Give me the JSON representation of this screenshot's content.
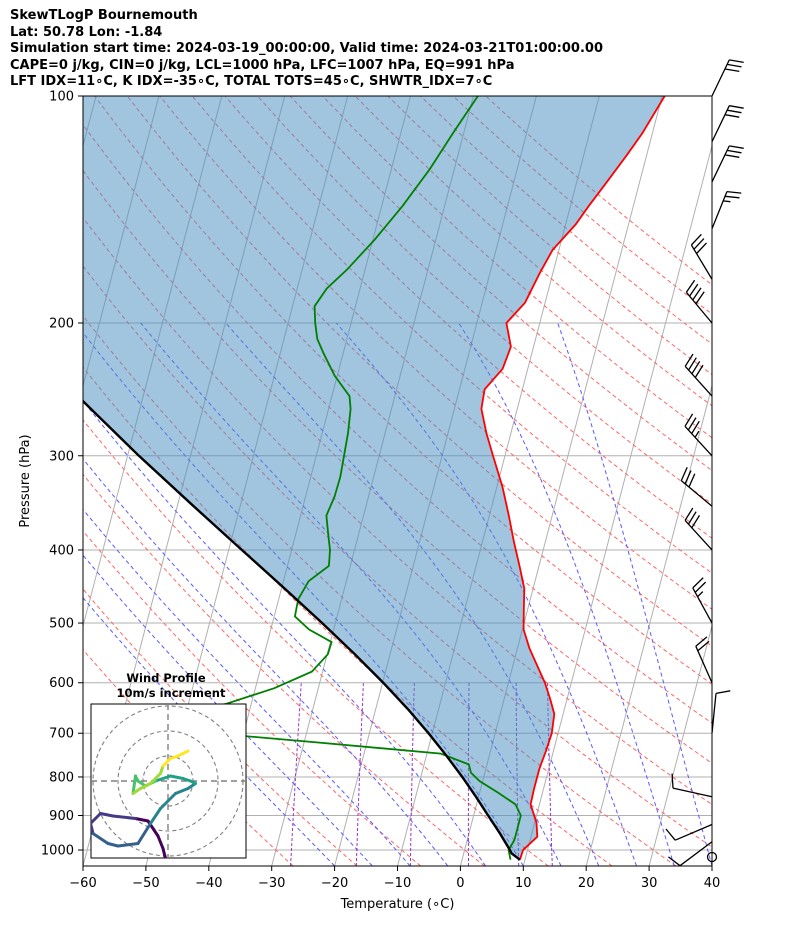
{
  "header": {
    "line1": "SkewTLogP Bournemouth",
    "line2": "Lat: 50.78   Lon: -1.84",
    "line3": "Simulation start time: 2024-03-19_00:00:00, Valid time: 2024-03-21T01:00:00.00",
    "line4": "CAPE=0 j/kg, CIN=0 j/kg, LCL=1000 hPa, LFC=1007 hPa, EQ=991 hPa",
    "line5": "LFT IDX=11∘C, K IDX=-35∘C, TOTAL TOTS=45∘C, SHWTR_IDX=7∘C"
  },
  "chart_data": {
    "type": "skewt",
    "xlabel": "Temperature (∘C)",
    "ylabel": "Pressure (hPa)",
    "xlim": [
      -60,
      40
    ],
    "ylim": [
      1050,
      100
    ],
    "x_ticks": [
      -60,
      -50,
      -40,
      -30,
      -20,
      -10,
      0,
      10,
      20,
      30,
      40
    ],
    "x_tick_labels": [
      "−60",
      "−50",
      "−40",
      "−30",
      "−20",
      "−10",
      "0",
      "10",
      "20",
      "30",
      "40"
    ],
    "y_ticks": [
      100,
      200,
      300,
      400,
      500,
      600,
      700,
      800,
      900,
      1000
    ],
    "y_tick_labels": [
      "100",
      "200",
      "300",
      "400",
      "500",
      "600",
      "700",
      "800",
      "900",
      "1000"
    ],
    "series": [
      {
        "color": "#ff0000",
        "points": [
          {
            "p": 1030,
            "t": 9.2
          },
          {
            "p": 1000,
            "t": 9.3
          },
          {
            "p": 960,
            "t": 11.0
          },
          {
            "p": 920,
            "t": 10.3
          },
          {
            "p": 870,
            "t": 8.6
          },
          {
            "p": 830,
            "t": 8.5
          },
          {
            "p": 780,
            "t": 8.5
          },
          {
            "p": 740,
            "t": 8.8
          },
          {
            "p": 700,
            "t": 9.0
          },
          {
            "p": 660,
            "t": 8.6
          },
          {
            "p": 630,
            "t": 7.3
          },
          {
            "p": 600,
            "t": 5.8
          },
          {
            "p": 570,
            "t": 3.9
          },
          {
            "p": 540,
            "t": 1.9
          },
          {
            "p": 510,
            "t": 0.2
          },
          {
            "p": 480,
            "t": -0.6
          },
          {
            "p": 450,
            "t": -1.4
          },
          {
            "p": 420,
            "t": -3.1
          },
          {
            "p": 390,
            "t": -5.0
          },
          {
            "p": 360,
            "t": -6.9
          },
          {
            "p": 330,
            "t": -9.1
          },
          {
            "p": 300,
            "t": -11.9
          },
          {
            "p": 280,
            "t": -13.9
          },
          {
            "p": 260,
            "t": -15.7
          },
          {
            "p": 245,
            "t": -16.0
          },
          {
            "p": 230,
            "t": -14.0
          },
          {
            "p": 215,
            "t": -13.6
          },
          {
            "p": 200,
            "t": -15.3
          },
          {
            "p": 188,
            "t": -13.2
          },
          {
            "p": 172,
            "t": -12.1
          },
          {
            "p": 160,
            "t": -11.0
          },
          {
            "p": 148,
            "t": -8.4
          },
          {
            "p": 140,
            "t": -7.1
          },
          {
            "p": 130,
            "t": -5.2
          },
          {
            "p": 120,
            "t": -3.2
          },
          {
            "p": 112,
            "t": -1.6
          },
          {
            "p": 100,
            "t": 0.4
          }
        ]
      },
      {
        "color": "#008000",
        "points": [
          {
            "p": 1030,
            "t": 7.7
          },
          {
            "p": 1000,
            "t": 7.0
          },
          {
            "p": 970,
            "t": 7.5
          },
          {
            "p": 940,
            "t": 7.5
          },
          {
            "p": 900,
            "t": 7.5
          },
          {
            "p": 870,
            "t": 6.2
          },
          {
            "p": 840,
            "t": 3.0
          },
          {
            "p": 810,
            "t": -0.5
          },
          {
            "p": 790,
            "t": -2.2
          },
          {
            "p": 770,
            "t": -2.9
          },
          {
            "p": 745,
            "t": -7.8
          },
          {
            "p": 720,
            "t": -28
          },
          {
            "p": 700,
            "t": -45
          },
          {
            "p": 680,
            "t": -53
          },
          {
            "p": 660,
            "t": -52
          },
          {
            "p": 640,
            "t": -44
          },
          {
            "p": 610,
            "t": -37
          },
          {
            "p": 580,
            "t": -31.7
          },
          {
            "p": 550,
            "t": -29.9
          },
          {
            "p": 530,
            "t": -29.8
          },
          {
            "p": 510,
            "t": -33.9
          },
          {
            "p": 490,
            "t": -36.7
          },
          {
            "p": 465,
            "t": -36.9
          },
          {
            "p": 440,
            "t": -36.0
          },
          {
            "p": 420,
            "t": -33.4
          },
          {
            "p": 400,
            "t": -33.9
          },
          {
            "p": 380,
            "t": -34.9
          },
          {
            "p": 360,
            "t": -35.9
          },
          {
            "p": 340,
            "t": -35.4
          },
          {
            "p": 320,
            "t": -35.3
          },
          {
            "p": 300,
            "t": -35.6
          },
          {
            "p": 280,
            "t": -35.9
          },
          {
            "p": 260,
            "t": -36.5
          },
          {
            "p": 250,
            "t": -37.2
          },
          {
            "p": 235,
            "t": -40.4
          },
          {
            "p": 220,
            "t": -43.0
          },
          {
            "p": 210,
            "t": -44.7
          },
          {
            "p": 200,
            "t": -45.7
          },
          {
            "p": 190,
            "t": -46.5
          },
          {
            "p": 180,
            "t": -45.3
          },
          {
            "p": 170,
            "t": -42.9
          },
          {
            "p": 155,
            "t": -39.7
          },
          {
            "p": 140,
            "t": -36.7
          },
          {
            "p": 125,
            "t": -33.9
          },
          {
            "p": 112,
            "t": -31.7
          },
          {
            "p": 100,
            "t": -29.3
          }
        ]
      },
      {
        "color": "#000000",
        "points": [
          {
            "p": 1030,
            "t": 9.2
          },
          {
            "p": 1010,
            "t": 7.6
          },
          {
            "p": 1000,
            "t": 7.2
          },
          {
            "p": 950,
            "t": 4.9
          },
          {
            "p": 900,
            "t": 2.3
          },
          {
            "p": 850,
            "t": -0.4
          },
          {
            "p": 800,
            "t": -3.4
          },
          {
            "p": 750,
            "t": -6.8
          },
          {
            "p": 700,
            "t": -10.6
          },
          {
            "p": 650,
            "t": -14.9
          },
          {
            "p": 600,
            "t": -19.9
          },
          {
            "p": 550,
            "t": -25.6
          },
          {
            "p": 500,
            "t": -32.1
          },
          {
            "p": 450,
            "t": -39.5
          },
          {
            "p": 400,
            "t": -47.9
          },
          {
            "p": 350,
            "t": -57.4
          },
          {
            "p": 300,
            "t": -68.2
          },
          {
            "p": 250,
            "t": -80.4
          },
          {
            "p": 200,
            "t": -94.2
          },
          {
            "p": 150,
            "t": -109.7
          },
          {
            "p": 125,
            "t": -118.2
          },
          {
            "p": 100,
            "t": -127.2
          }
        ]
      }
    ],
    "wind_barbs": [
      {
        "p": 1000,
        "u": -1,
        "v": 0,
        "kind": "calm"
      },
      {
        "p": 975,
        "u": -8,
        "v": -6
      },
      {
        "p": 925,
        "u": -7,
        "v": -3
      },
      {
        "p": 850,
        "u": -9,
        "v": 2
      },
      {
        "p": 700,
        "u": 1,
        "v": 10
      },
      {
        "p": 600,
        "u": -8,
        "v": 18
      },
      {
        "p": 500,
        "u": -12,
        "v": 22
      },
      {
        "p": 400,
        "u": -20,
        "v": 22
      },
      {
        "p": 350,
        "u": -24,
        "v": 20
      },
      {
        "p": 300,
        "u": -22,
        "v": 24
      },
      {
        "p": 250,
        "u": -27,
        "v": 30
      },
      {
        "p": 200,
        "u": -25,
        "v": 30
      },
      {
        "p": 175,
        "u": -15,
        "v": 25
      },
      {
        "p": 150,
        "u": 10,
        "v": 25
      },
      {
        "p": 130,
        "u": 12,
        "v": 25
      },
      {
        "p": 115,
        "u": 12,
        "v": 25
      },
      {
        "p": 100,
        "u": 12,
        "v": 25
      }
    ],
    "hodograph": {
      "title": "Wind Profile",
      "subtitle": "10m/s increment",
      "points": [
        [
          -1,
          -31
        ],
        [
          -2,
          -27
        ],
        [
          -4,
          -22
        ],
        [
          -8,
          -16
        ],
        [
          -13,
          -15
        ],
        [
          -22,
          -14
        ],
        [
          -27,
          -13
        ],
        [
          -31,
          -17
        ],
        [
          -30,
          -21
        ],
        [
          -24,
          -25
        ],
        [
          -20,
          -26
        ],
        [
          -12,
          -25
        ],
        [
          -7,
          -17
        ],
        [
          -3,
          -11
        ],
        [
          3,
          -5
        ],
        [
          8,
          -3
        ],
        [
          11,
          -1
        ],
        [
          9,
          0
        ],
        [
          6,
          1
        ],
        [
          1,
          2
        ],
        [
          -5,
          0
        ],
        [
          -9,
          -2
        ],
        [
          -12,
          0
        ],
        [
          -13,
          2
        ],
        [
          -14,
          -5
        ],
        [
          -11,
          -3
        ],
        [
          -7,
          -1
        ],
        [
          -3,
          3
        ],
        [
          -2,
          6
        ],
        [
          1,
          9
        ],
        [
          4,
          10
        ],
        [
          8,
          12
        ]
      ],
      "center_dx": [
        0,
        0
      ],
      "ring_count": 3
    }
  }
}
